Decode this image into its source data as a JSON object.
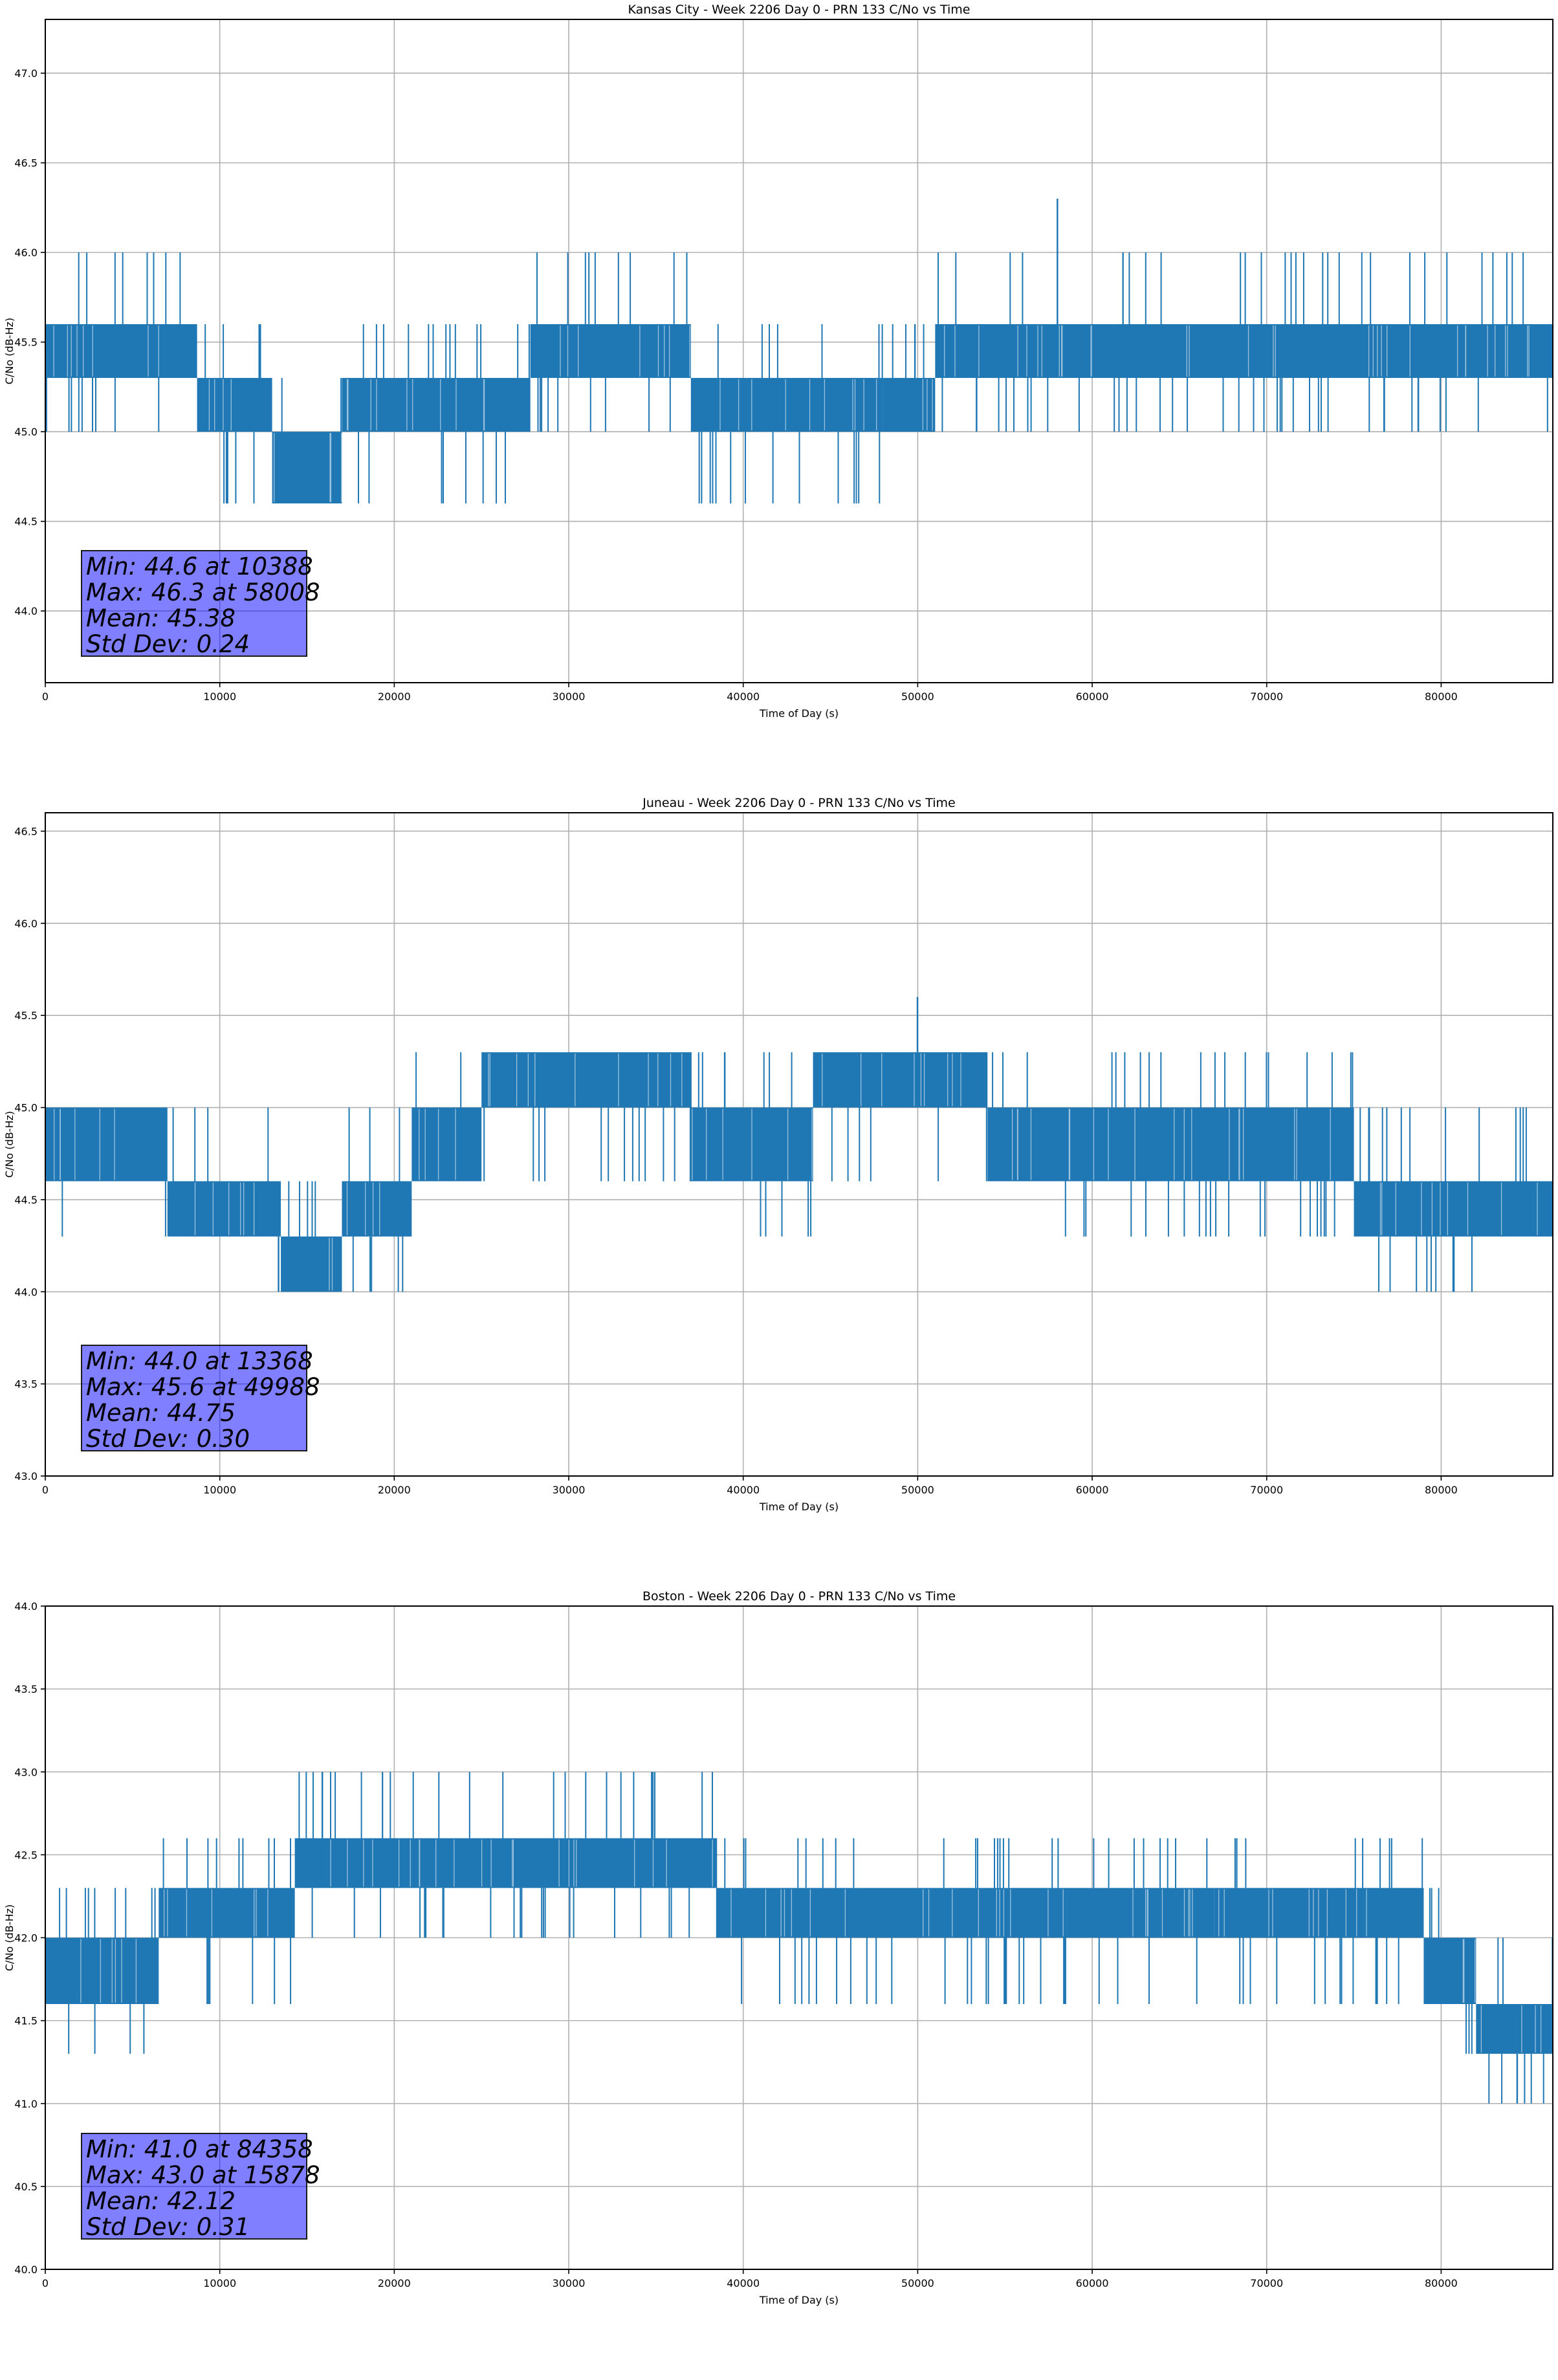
{
  "colors": {
    "series": "#1f77b4",
    "grid": "#b0b0b0",
    "statbox": "#8080ff"
  },
  "chart_data": [
    {
      "type": "line",
      "title": "Kansas City - Week 2206 Day 0 - PRN 133 C/No vs Time",
      "xlabel": "Time of Day (s)",
      "ylabel": "C/No (dB-Hz)",
      "xlim": [
        0,
        86400
      ],
      "ylim": [
        43.6,
        47.3
      ],
      "xticks": [
        0,
        10000,
        20000,
        30000,
        40000,
        50000,
        60000,
        70000,
        80000
      ],
      "yticks": [
        44.0,
        44.5,
        45.0,
        45.5,
        46.0,
        46.5,
        47.0
      ],
      "grid": true,
      "segments": [
        {
          "start": 0,
          "end": 8700,
          "low": 45.3,
          "high": 45.6,
          "dips": 45.0,
          "spikes": 46.0
        },
        {
          "start": 8700,
          "end": 13000,
          "low": 45.0,
          "high": 45.3,
          "dips": 44.6,
          "spikes": 45.6
        },
        {
          "start": 13000,
          "end": 17000,
          "low": 44.6,
          "high": 45.0,
          "dips": 44.6,
          "spikes": 45.3
        },
        {
          "start": 17000,
          "end": 27800,
          "low": 45.0,
          "high": 45.3,
          "dips": 44.6,
          "spikes": 45.6
        },
        {
          "start": 27800,
          "end": 37000,
          "low": 45.3,
          "high": 45.6,
          "dips": 45.0,
          "spikes": 46.0
        },
        {
          "start": 37000,
          "end": 48000,
          "low": 45.0,
          "high": 45.3,
          "dips": 44.6,
          "spikes": 45.6
        },
        {
          "start": 48000,
          "end": 51000,
          "low": 45.0,
          "high": 45.3,
          "dips": 45.0,
          "spikes": 45.6
        },
        {
          "start": 51000,
          "end": 86400,
          "low": 45.3,
          "high": 45.6,
          "dips": 45.0,
          "spikes": 46.0
        }
      ],
      "extremes": [
        {
          "x": 10388,
          "y": 44.6
        },
        {
          "x": 58008,
          "y": 46.3
        }
      ],
      "stats": {
        "min": "Min: 44.6 at 10388",
        "max": "Max: 46.3 at 58008",
        "mean": "Mean: 45.38",
        "std": "Std Dev: 0.24"
      }
    },
    {
      "type": "line",
      "title": "Juneau - Week 2206 Day 0 - PRN 133 C/No vs Time",
      "xlabel": "Time of Day (s)",
      "ylabel": "C/No (dB-Hz)",
      "xlim": [
        0,
        86400
      ],
      "ylim": [
        43.0,
        46.6
      ],
      "xticks": [
        0,
        10000,
        20000,
        30000,
        40000,
        50000,
        60000,
        70000,
        80000
      ],
      "yticks": [
        43.0,
        43.5,
        44.0,
        44.5,
        45.0,
        45.5,
        46.0,
        46.5
      ],
      "grid": true,
      "segments": [
        {
          "start": 0,
          "end": 7000,
          "low": 44.6,
          "high": 45.0,
          "dips": 44.3,
          "spikes": 45.0
        },
        {
          "start": 7000,
          "end": 13500,
          "low": 44.3,
          "high": 44.6,
          "dips": 44.3,
          "spikes": 45.0
        },
        {
          "start": 13500,
          "end": 17000,
          "low": 44.0,
          "high": 44.3,
          "dips": 44.0,
          "spikes": 44.6
        },
        {
          "start": 17000,
          "end": 21000,
          "low": 44.3,
          "high": 44.6,
          "dips": 44.0,
          "spikes": 45.0
        },
        {
          "start": 21000,
          "end": 25000,
          "low": 44.6,
          "high": 45.0,
          "dips": 44.6,
          "spikes": 45.3
        },
        {
          "start": 25000,
          "end": 37000,
          "low": 45.0,
          "high": 45.3,
          "dips": 44.6,
          "spikes": 45.3
        },
        {
          "start": 37000,
          "end": 44000,
          "low": 44.6,
          "high": 45.0,
          "dips": 44.3,
          "spikes": 45.3
        },
        {
          "start": 44000,
          "end": 54000,
          "low": 45.0,
          "high": 45.3,
          "dips": 44.6,
          "spikes": 45.3
        },
        {
          "start": 54000,
          "end": 75000,
          "low": 44.6,
          "high": 45.0,
          "dips": 44.3,
          "spikes": 45.3
        },
        {
          "start": 75000,
          "end": 86400,
          "low": 44.3,
          "high": 44.6,
          "dips": 44.0,
          "spikes": 45.0
        }
      ],
      "extremes": [
        {
          "x": 13368,
          "y": 44.0
        },
        {
          "x": 49988,
          "y": 45.6
        }
      ],
      "stats": {
        "min": "Min: 44.0 at 13368",
        "max": "Max: 45.6 at 49988",
        "mean": "Mean: 44.75",
        "std": "Std Dev: 0.30"
      }
    },
    {
      "type": "line",
      "title": "Boston - Week 2206 Day 0 - PRN 133 C/No vs Time",
      "xlabel": "Time of Day (s)",
      "ylabel": "C/No (dB-Hz)",
      "xlim": [
        0,
        86400
      ],
      "ylim": [
        40.0,
        44.0
      ],
      "xticks": [
        0,
        10000,
        20000,
        30000,
        40000,
        50000,
        60000,
        70000,
        80000
      ],
      "yticks": [
        40.0,
        40.5,
        41.0,
        41.5,
        42.0,
        42.5,
        43.0,
        43.5,
        44.0
      ],
      "grid": true,
      "segments": [
        {
          "start": 0,
          "end": 6500,
          "low": 41.6,
          "high": 42.0,
          "dips": 41.3,
          "spikes": 42.3
        },
        {
          "start": 6500,
          "end": 14300,
          "low": 42.0,
          "high": 42.3,
          "dips": 41.6,
          "spikes": 42.6
        },
        {
          "start": 14300,
          "end": 38500,
          "low": 42.3,
          "high": 42.6,
          "dips": 42.0,
          "spikes": 43.0
        },
        {
          "start": 38500,
          "end": 67000,
          "low": 42.0,
          "high": 42.3,
          "dips": 41.6,
          "spikes": 42.6
        },
        {
          "start": 67000,
          "end": 79000,
          "low": 42.0,
          "high": 42.3,
          "dips": 41.6,
          "spikes": 42.6
        },
        {
          "start": 79000,
          "end": 82000,
          "low": 41.6,
          "high": 42.0,
          "dips": 41.3,
          "spikes": 42.3
        },
        {
          "start": 82000,
          "end": 86400,
          "low": 41.3,
          "high": 41.6,
          "dips": 41.0,
          "spikes": 42.0
        }
      ],
      "extremes": [
        {
          "x": 84358,
          "y": 41.0
        },
        {
          "x": 15878,
          "y": 43.0
        }
      ],
      "stats": {
        "min": "Min: 41.0 at 84358",
        "max": "Max: 43.0 at 15878",
        "mean": "Mean: 42.12",
        "std": "Std Dev: 0.31"
      }
    }
  ]
}
